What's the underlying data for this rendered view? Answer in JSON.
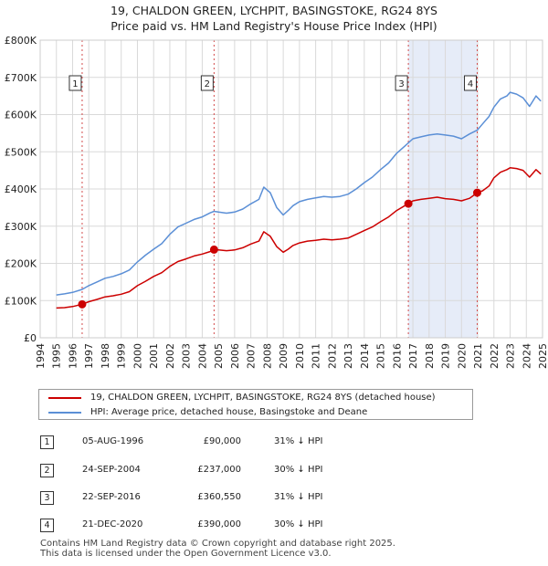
{
  "chart_data": {
    "type": "line",
    "title": "19, CHALDON GREEN, LYCHPIT, BASINGSTOKE, RG24 8YS",
    "subtitle": "Price paid vs. HM Land Registry's House Price Index (HPI)",
    "xlim": [
      1994,
      2025
    ],
    "ylim": [
      0,
      800000
    ],
    "x_ticks": [
      "1994",
      "1995",
      "1996",
      "1997",
      "1998",
      "1999",
      "2000",
      "2001",
      "2002",
      "2003",
      "2004",
      "2005",
      "2006",
      "2007",
      "2008",
      "2009",
      "2010",
      "2011",
      "2012",
      "2013",
      "2014",
      "2015",
      "2016",
      "2017",
      "2018",
      "2019",
      "2020",
      "2021",
      "2022",
      "2023",
      "2024",
      "2025"
    ],
    "y_ticks": [
      {
        "value": 0,
        "label": "£0"
      },
      {
        "value": 100000,
        "label": "£100K"
      },
      {
        "value": 200000,
        "label": "£200K"
      },
      {
        "value": 300000,
        "label": "£300K"
      },
      {
        "value": 400000,
        "label": "£400K"
      },
      {
        "value": 500000,
        "label": "£500K"
      },
      {
        "value": 600000,
        "label": "£600K"
      },
      {
        "value": 700000,
        "label": "£700K"
      },
      {
        "value": 800000,
        "label": "£800K"
      }
    ],
    "grid": true,
    "shaded_periods": [
      [
        1996.6,
        1996.6
      ],
      [
        2016.72,
        2020.97
      ]
    ],
    "series": [
      {
        "name": "19, CHALDON GREEN, LYCHPIT, BASINGSTOKE, RG24 8YS (detached house)",
        "color": "#cc0000",
        "x": [
          1995.0,
          1995.5,
          1996.0,
          1996.59,
          1997.0,
          1997.5,
          1998.0,
          1998.5,
          1999.0,
          1999.5,
          2000.0,
          2000.5,
          2001.0,
          2001.5,
          2002.0,
          2002.5,
          2003.0,
          2003.5,
          2004.0,
          2004.5,
          2004.73,
          2005.0,
          2005.5,
          2006.0,
          2006.5,
          2007.0,
          2007.5,
          2007.8,
          2008.2,
          2008.6,
          2009.0,
          2009.3,
          2009.6,
          2010.0,
          2010.5,
          2011.0,
          2011.5,
          2012.0,
          2012.5,
          2013.0,
          2013.5,
          2014.0,
          2014.5,
          2015.0,
          2015.5,
          2016.0,
          2016.5,
          2016.72,
          2017.0,
          2017.5,
          2018.0,
          2018.5,
          2019.0,
          2019.5,
          2020.0,
          2020.5,
          2020.97,
          2021.3,
          2021.7,
          2022.0,
          2022.4,
          2022.8,
          2023.0,
          2023.4,
          2023.8,
          2024.2,
          2024.6,
          2024.9
        ],
        "values": [
          80000,
          81000,
          84000,
          90000,
          97000,
          103000,
          110000,
          113000,
          117000,
          124000,
          140000,
          152000,
          165000,
          175000,
          192000,
          205000,
          212000,
          220000,
          225000,
          232000,
          237000,
          236000,
          234000,
          236000,
          242000,
          252000,
          260000,
          285000,
          273000,
          245000,
          230000,
          238000,
          248000,
          255000,
          260000,
          262000,
          265000,
          263000,
          265000,
          268000,
          278000,
          288000,
          298000,
          312000,
          325000,
          342000,
          355000,
          360550,
          368000,
          372000,
          375000,
          378000,
          374000,
          372000,
          368000,
          375000,
          390000,
          395000,
          408000,
          430000,
          445000,
          452000,
          457000,
          455000,
          450000,
          432000,
          452000,
          440000
        ]
      },
      {
        "name": "HPI: Average price, detached house, Basingstoke and Deane",
        "color": "#5b8fd6",
        "x": [
          1995.0,
          1995.5,
          1996.0,
          1996.59,
          1997.0,
          1997.5,
          1998.0,
          1998.5,
          1999.0,
          1999.5,
          2000.0,
          2000.5,
          2001.0,
          2001.5,
          2002.0,
          2002.5,
          2003.0,
          2003.5,
          2004.0,
          2004.5,
          2004.73,
          2005.0,
          2005.5,
          2006.0,
          2006.5,
          2007.0,
          2007.5,
          2007.8,
          2008.2,
          2008.6,
          2009.0,
          2009.3,
          2009.6,
          2010.0,
          2010.5,
          2011.0,
          2011.5,
          2012.0,
          2012.5,
          2013.0,
          2013.5,
          2014.0,
          2014.5,
          2015.0,
          2015.5,
          2016.0,
          2016.5,
          2016.72,
          2017.0,
          2017.5,
          2018.0,
          2018.5,
          2019.0,
          2019.5,
          2020.0,
          2020.5,
          2020.97,
          2021.3,
          2021.7,
          2022.0,
          2022.4,
          2022.8,
          2023.0,
          2023.4,
          2023.8,
          2024.2,
          2024.6,
          2024.9
        ],
        "values": [
          115000,
          118000,
          122000,
          130000,
          140000,
          150000,
          160000,
          165000,
          172000,
          182000,
          204000,
          222000,
          238000,
          253000,
          278000,
          298000,
          308000,
          318000,
          325000,
          336000,
          340000,
          338000,
          335000,
          338000,
          346000,
          360000,
          372000,
          405000,
          390000,
          350000,
          330000,
          342000,
          355000,
          366000,
          372000,
          376000,
          380000,
          378000,
          380000,
          386000,
          400000,
          417000,
          432000,
          452000,
          470000,
          496000,
          515000,
          524000,
          535000,
          540000,
          545000,
          548000,
          545000,
          542000,
          535000,
          548000,
          558000,
          575000,
          595000,
          620000,
          642000,
          650000,
          660000,
          655000,
          645000,
          622000,
          650000,
          636000
        ]
      }
    ],
    "annotations": [
      {
        "label": "1",
        "x": 1996.59,
        "y": 90000
      },
      {
        "label": "2",
        "x": 2004.73,
        "y": 237000
      },
      {
        "label": "3",
        "x": 2016.72,
        "y": 360550
      },
      {
        "label": "4",
        "x": 2020.97,
        "y": 390000
      }
    ]
  },
  "legend": {
    "property_label": "19, CHALDON GREEN, LYCHPIT, BASINGSTOKE, RG24 8YS (detached house)",
    "hpi_label": "HPI: Average price, detached house, Basingstoke and Deane"
  },
  "transactions": [
    {
      "num": "1",
      "date": "05-AUG-1996",
      "price": "£90,000",
      "hpi": "31% ↓ HPI"
    },
    {
      "num": "2",
      "date": "24-SEP-2004",
      "price": "£237,000",
      "hpi": "30% ↓ HPI"
    },
    {
      "num": "3",
      "date": "22-SEP-2016",
      "price": "£360,550",
      "hpi": "31% ↓ HPI"
    },
    {
      "num": "4",
      "date": "21-DEC-2020",
      "price": "£390,000",
      "hpi": "30% ↓ HPI"
    }
  ],
  "footer": {
    "line1": "Contains HM Land Registry data © Crown copyright and database right 2025.",
    "line2": "This data is licensed under the Open Government Licence v3.0."
  }
}
